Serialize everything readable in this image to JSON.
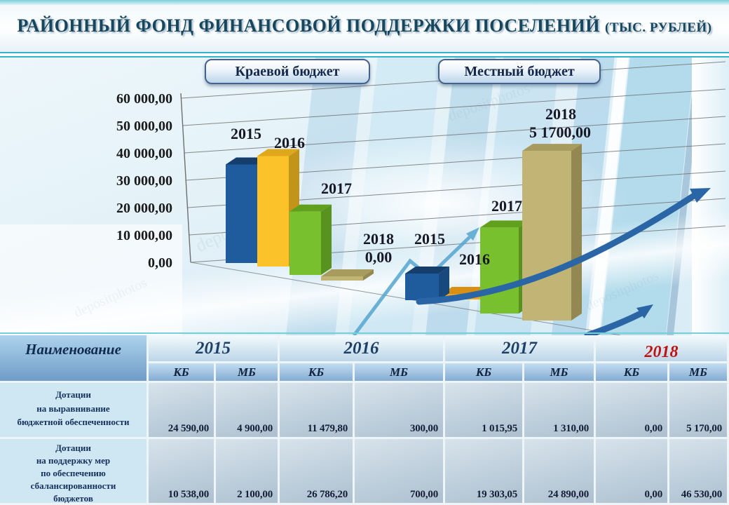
{
  "header": {
    "title_main": "РАЙОННЫЙ ФОНД ФИНАНСОВОЙ ПОДДЕРЖКИ ПОСЕЛЕНИЙ ",
    "title_suffix": "(ТЫС. РУБЛЕЙ)"
  },
  "legend": [
    {
      "label": "Краевой бюджет"
    },
    {
      "label": "Местный бюджет"
    }
  ],
  "watermark": "depositphotos",
  "decor": {
    "arrow_color": "#2a66a5",
    "trend_color": "#55a5cf",
    "grid_color": "#6e6e6e",
    "label_color": "#171726"
  },
  "chart_data": {
    "type": "bar",
    "title": "Районный фонд финансовой поддержки поселений",
    "unit": "тыс. рублей",
    "categories": [
      "2015",
      "2016",
      "2017",
      "2018"
    ],
    "series": [
      {
        "name": "Краевой бюджет",
        "values": [
          35128.0,
          38266.0,
          20319.0,
          0.0
        ]
      },
      {
        "name": "Местный бюджет",
        "values": [
          7000.0,
          1000.0,
          26200.0,
          51700.0
        ]
      }
    ],
    "shown_value_labels": [
      {
        "series": 0,
        "category": "2018",
        "text": "0,00"
      },
      {
        "series": 1,
        "category": "2018",
        "text": "5 1700,00"
      }
    ],
    "y_ticks": [
      "60 000,00",
      "50 000,00",
      "40 000,00",
      "30 000,00",
      "20 000,00",
      "10 000,00",
      "0,00"
    ],
    "y_max": 60000,
    "grid": true,
    "legend_position": "top",
    "colors": {
      "2015": [
        "#1f5c9e",
        "#153e6d",
        "#17497f"
      ],
      "2016": [
        "#fcc22a",
        "#dfa81c",
        "#c3941a"
      ],
      "2016b": [
        "#f6a91e",
        "#d88f12",
        "#bf7f10"
      ],
      "2017": [
        "#79c02f",
        "#61a01c",
        "#589320"
      ],
      "2018": [
        "#c2b475",
        "#a89b5e",
        "#938851"
      ]
    }
  },
  "table": {
    "name_header": "Наименование",
    "years": [
      {
        "label": "2015"
      },
      {
        "label": "2016"
      },
      {
        "label": "2017"
      },
      {
        "label": "2018"
      }
    ],
    "sub_headers": [
      "КБ",
      "МБ",
      "КБ",
      "МБ",
      "КБ",
      "МБ",
      "КБ",
      "МБ"
    ],
    "rows": [
      {
        "label": "Дотации\nна выравнивание\nбюджетной обеспеченности",
        "values": [
          "24 590,00",
          "4 900,00",
          "11 479,80",
          "300,00",
          "1 015,95",
          "1 310,00",
          "0,00",
          "5 170,00"
        ]
      },
      {
        "label": "Дотации\nна поддержку мер\nпо обеспечению\nсбалансированности\nбюджетов",
        "values": [
          "10 538,00",
          "2 100,00",
          "26 786,20",
          "700,00",
          "19 303,05",
          "24 890,00",
          "0,00",
          "46 530,00"
        ]
      }
    ]
  }
}
